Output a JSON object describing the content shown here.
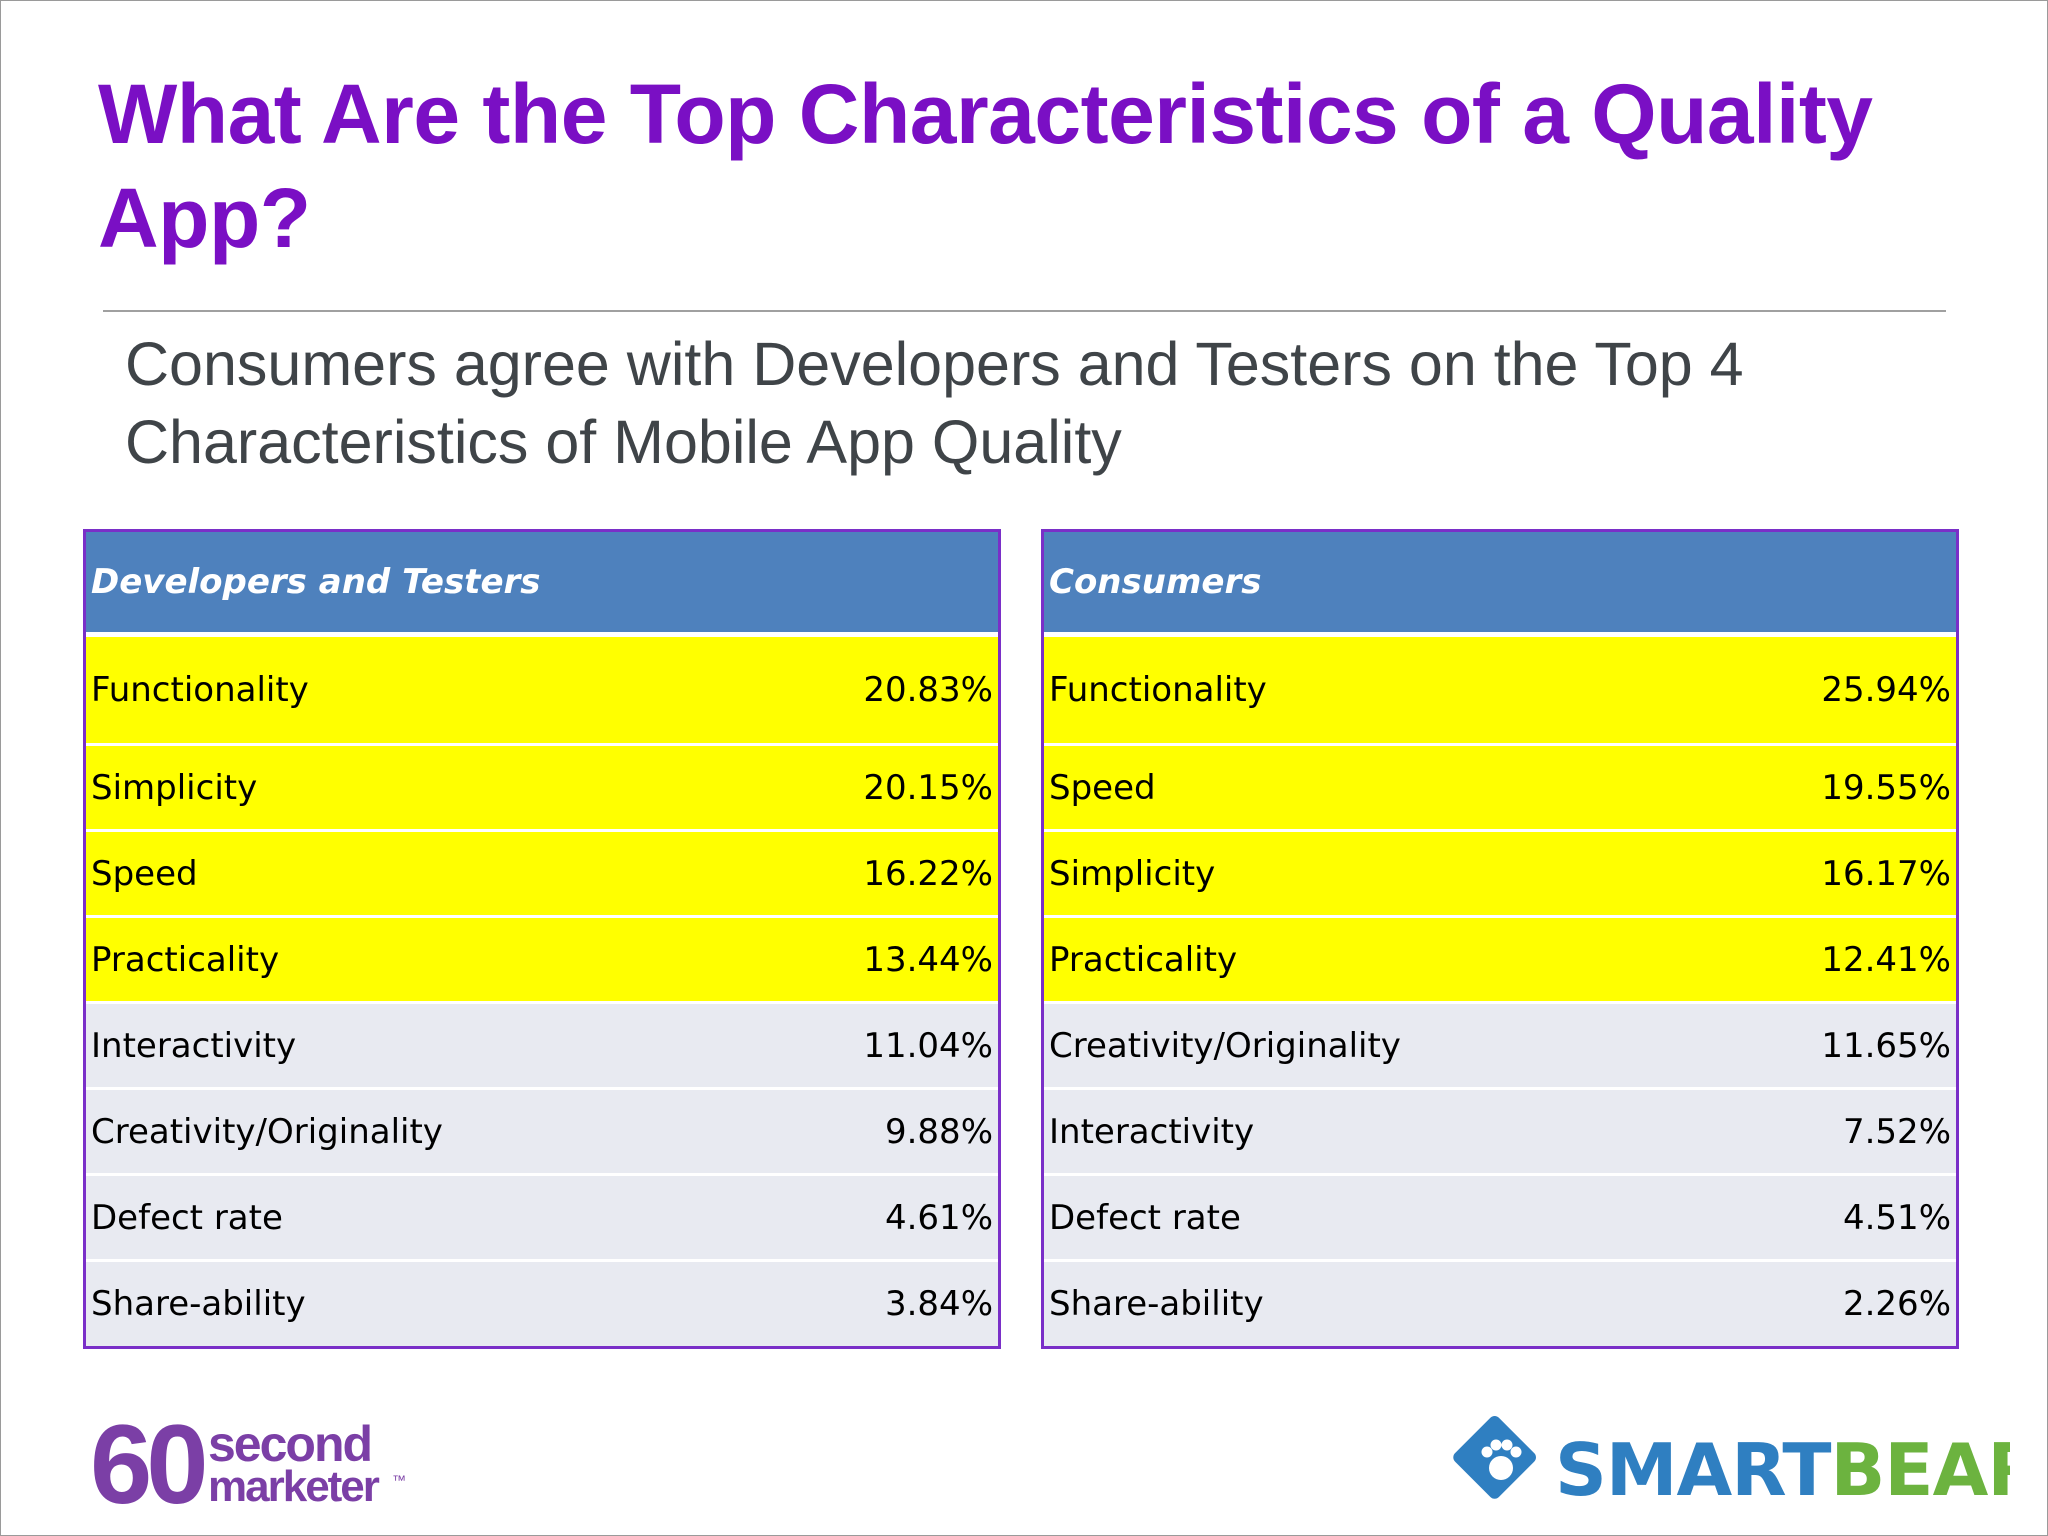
{
  "title": "What Are the Top Characteristics of a Quality App?",
  "subtitle": "Consumers agree with Developers and Testers on the Top 4 Characteristics of Mobile App Quality",
  "tables": [
    {
      "header": "Developers and Testers",
      "rows": [
        {
          "label": "Functionality",
          "value": "20.83%"
        },
        {
          "label": "Simplicity",
          "value": "20.15%"
        },
        {
          "label": "Speed",
          "value": "16.22%"
        },
        {
          "label": "Practicality",
          "value": "13.44%"
        },
        {
          "label": "Interactivity",
          "value": "11.04%"
        },
        {
          "label": "Creativity/Originality",
          "value": "9.88%"
        },
        {
          "label": "Defect rate",
          "value": "4.61%"
        },
        {
          "label": "Share-ability",
          "value": "3.84%"
        }
      ]
    },
    {
      "header": "Consumers",
      "rows": [
        {
          "label": "Functionality",
          "value": "25.94%"
        },
        {
          "label": "Speed",
          "value": "19.55%"
        },
        {
          "label": "Simplicity",
          "value": "16.17%"
        },
        {
          "label": "Practicality",
          "value": "12.41%"
        },
        {
          "label": "Creativity/Originality",
          "value": "11.65%"
        },
        {
          "label": "Interactivity",
          "value": "7.52%"
        },
        {
          "label": "Defect rate",
          "value": "4.51%"
        },
        {
          "label": "Share-ability",
          "value": "2.26%"
        }
      ]
    }
  ],
  "highlighted_rows": 4,
  "colors": {
    "title": "#7A0FC4",
    "header_bg": "#4E81BD",
    "highlight": "#FFFF00",
    "row_bg": "#E8EAF1",
    "border": "#7A2FC8",
    "smartbear_blue": "#2F7FC1",
    "smartbear_green": "#6CB33F",
    "sixty_purple": "#7B3FA6"
  },
  "logos": {
    "left": {
      "number": "60",
      "line1": "second",
      "line2": "marketer",
      "mark": "™"
    },
    "right": {
      "word_a": "SMART",
      "word_b": "BEAR",
      "icon": "paw-diamond-icon"
    }
  }
}
